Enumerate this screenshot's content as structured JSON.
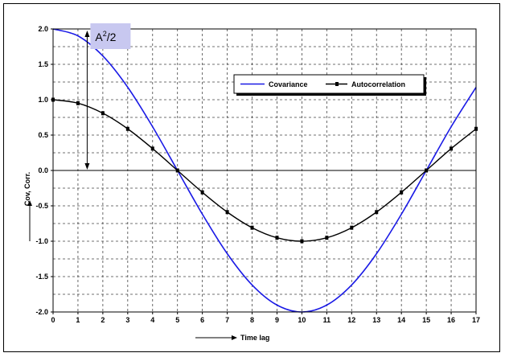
{
  "chart_data": {
    "type": "line",
    "title": "",
    "xlabel": "Time lag",
    "ylabel": "Cov,  Corr.",
    "xlim": [
      0,
      17
    ],
    "ylim": [
      -2.0,
      2.0
    ],
    "x_ticks": [
      "0",
      "1",
      "2",
      "3",
      "4",
      "5",
      "6",
      "7",
      "8",
      "9",
      "10",
      "11",
      "12",
      "13",
      "14",
      "15",
      "16",
      "17"
    ],
    "y_ticks": [
      "2.0",
      "1.5",
      "1.0",
      "0.5",
      "0.0",
      "-0.5",
      "-1.0",
      "-1.5",
      "-2.0"
    ],
    "grid": true,
    "legend_position": "top-right",
    "annotation": {
      "text_base": "A",
      "text_sup": "2",
      "text_rest": "/2",
      "x": 1.5,
      "y_from": 0.0,
      "y_to": 2.0
    },
    "series": [
      {
        "name": "Covariance",
        "color": "#1a1ae6",
        "marker": "none",
        "x": [
          0,
          1,
          2,
          3,
          4,
          5,
          6,
          7,
          8,
          9,
          10,
          11,
          12,
          13,
          14,
          15,
          16,
          17
        ],
        "values": [
          2.0,
          1.902,
          1.618,
          1.176,
          0.618,
          0.0,
          -0.618,
          -1.176,
          -1.618,
          -1.902,
          -2.0,
          -1.902,
          -1.618,
          -1.176,
          -0.618,
          0.0,
          0.618,
          1.176
        ]
      },
      {
        "name": "Autocorrelation",
        "color": "#000000",
        "marker": "dash",
        "x": [
          0,
          1,
          2,
          3,
          4,
          5,
          6,
          7,
          8,
          9,
          10,
          11,
          12,
          13,
          14,
          15,
          16,
          17
        ],
        "values": [
          1.0,
          0.951,
          0.809,
          0.588,
          0.309,
          0.0,
          -0.309,
          -0.588,
          -0.809,
          -0.951,
          -1.0,
          -0.951,
          -0.809,
          -0.588,
          -0.309,
          0.0,
          0.309,
          0.588
        ]
      }
    ]
  }
}
